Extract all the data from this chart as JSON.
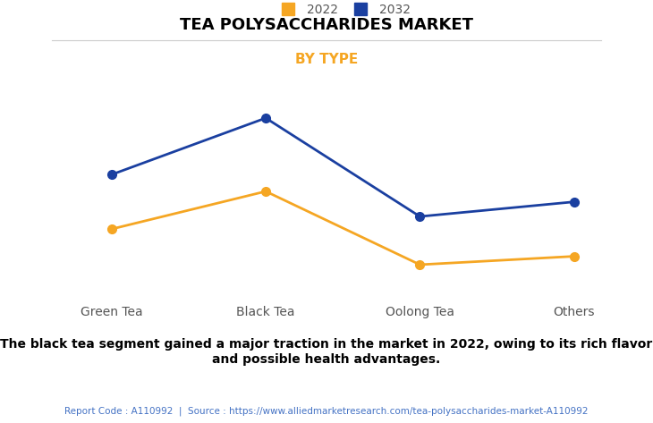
{
  "title": "TEA POLYSACCHARIDES MARKET",
  "subtitle": "BY TYPE",
  "categories": [
    "Green Tea",
    "Black Tea",
    "Oolong Tea",
    "Others"
  ],
  "series_2022": [
    3.2,
    5.0,
    1.5,
    1.9
  ],
  "series_2032": [
    5.8,
    8.5,
    3.8,
    4.5
  ],
  "color_2022": "#F5A623",
  "color_2032": "#1A3FA0",
  "legend_labels": [
    "2022",
    "2032"
  ],
  "annotation_bold": "The black tea segment gained a major traction in the market in 2022, owing to its rich flavor\nand possible health advantages.",
  "footer_text": "Report Code : A110992  |  Source : https://www.alliedmarketresearch.com/tea-polysaccharides-market-A110992",
  "subtitle_color": "#F5A623",
  "title_color": "#000000",
  "background_color": "#FFFFFF",
  "grid_color": "#CCCCCC",
  "footer_color": "#4472C4",
  "annotation_color": "#000000"
}
